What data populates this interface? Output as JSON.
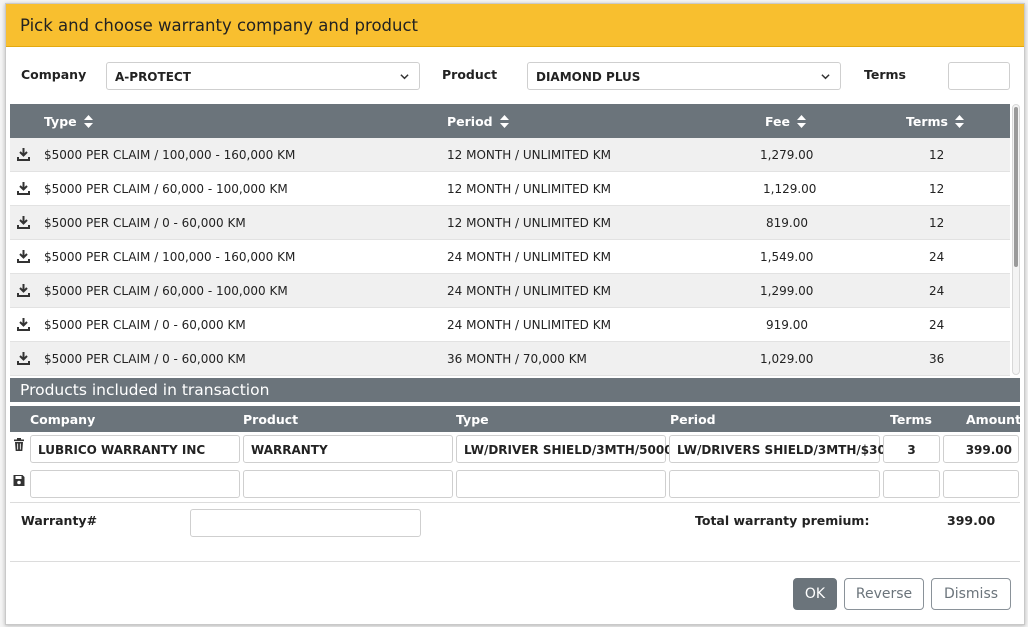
{
  "dialog": {
    "title": "Pick and choose warranty company and product"
  },
  "filters": {
    "company_label": "Company",
    "company_value": "A-PROTECT",
    "product_label": "Product",
    "product_value": "DIAMOND PLUS",
    "terms_label": "Terms",
    "terms_value": ""
  },
  "grid": {
    "columns": [
      "Type",
      "Period",
      "Fee",
      "Terms"
    ],
    "rows": [
      {
        "type": "$5000 PER CLAIM / 100,000 - 160,000 KM",
        "period": "12 MONTH / UNLIMITED KM",
        "fee": "1,279.00",
        "terms": "12"
      },
      {
        "type": "$5000 PER CLAIM / 60,000 - 100,000 KM",
        "period": "12 MONTH / UNLIMITED KM",
        "fee": "1,129.00",
        "terms": "12"
      },
      {
        "type": "$5000 PER CLAIM / 0 - 60,000 KM",
        "period": "12 MONTH / UNLIMITED KM",
        "fee": "819.00",
        "terms": "12"
      },
      {
        "type": "$5000 PER CLAIM / 100,000 - 160,000 KM",
        "period": "24 MONTH / UNLIMITED KM",
        "fee": "1,549.00",
        "terms": "24"
      },
      {
        "type": "$5000 PER CLAIM / 60,000 - 100,000 KM",
        "period": "24 MONTH / UNLIMITED KM",
        "fee": "1,299.00",
        "terms": "24"
      },
      {
        "type": "$5000 PER CLAIM / 0 - 60,000 KM",
        "period": "24 MONTH / UNLIMITED KM",
        "fee": "919.00",
        "terms": "24"
      },
      {
        "type": "$5000 PER CLAIM / 0 - 60,000 KM",
        "period": "36 MONTH / 70,000 KM",
        "fee": "1,029.00",
        "terms": "36"
      }
    ]
  },
  "included": {
    "title": "Products included in transaction",
    "columns": [
      "Company",
      "Product",
      "Type",
      "Period",
      "Terms",
      "Amount"
    ],
    "row": {
      "company": "LUBRICO WARRANTY INC",
      "product": "WARRANTY",
      "type": "LW/DRIVER SHIELD/3MTH/5000",
      "period": "LW/DRIVERS SHIELD/3MTH/$30",
      "terms": "3",
      "amount": "399.00"
    }
  },
  "footer": {
    "warranty_label": "Warranty#",
    "warranty_value": "",
    "total_label": "Total warranty premium:",
    "total_value": "399.00"
  },
  "buttons": {
    "ok": "OK",
    "reverse": "Reverse",
    "dismiss": "Dismiss"
  },
  "icons": {
    "row_action": "download-icon",
    "delete": "trash-icon",
    "save": "save-icon",
    "sort": "sort-icon",
    "dropdown": "chevron-down-icon"
  },
  "colors": {
    "header": "#f8bf2f",
    "table_header": "#6b747b",
    "ok_button": "#6b747b"
  }
}
